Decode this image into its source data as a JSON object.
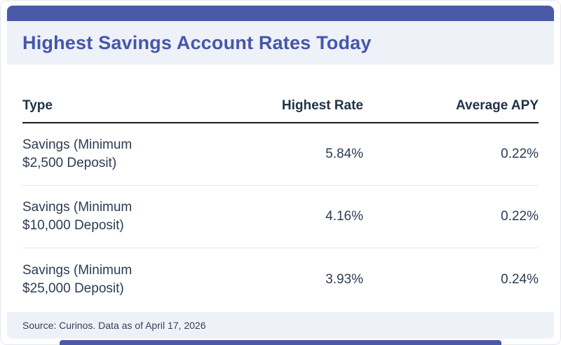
{
  "header": {
    "title": "Highest Savings Account Rates Today"
  },
  "table": {
    "columns": {
      "type": "Type",
      "highest_rate": "Highest Rate",
      "average_apy": "Average APY"
    },
    "rows": [
      {
        "type_line1": "Savings (Minimum",
        "type_line2": "$2,500 Deposit)",
        "highest_rate": "5.84%",
        "average_apy": "0.22%"
      },
      {
        "type_line1": "Savings (Minimum",
        "type_line2": "$10,000 Deposit)",
        "highest_rate": "4.16%",
        "average_apy": "0.22%"
      },
      {
        "type_line1": "Savings (Minimum",
        "type_line2": "$25,000 Deposit)",
        "highest_rate": "3.93%",
        "average_apy": "0.24%"
      }
    ]
  },
  "footer": {
    "source": "Source: Curinos. Data as of April 17, 2026"
  },
  "colors": {
    "accent_blue": "#4a59a8",
    "band_bg": "#eef1f8",
    "title_blue": "#4557ac",
    "text_dark": "#2c3c54",
    "header_rule": "#1c1c1c",
    "row_divider": "#e7e8ea"
  },
  "chart_data": {
    "type": "table",
    "title": "Highest Savings Account Rates Today",
    "columns": [
      "Type",
      "Highest Rate",
      "Average APY"
    ],
    "rows": [
      [
        "Savings (Minimum $2,500 Deposit)",
        "5.84%",
        "0.22%"
      ],
      [
        "Savings (Minimum $10,000 Deposit)",
        "4.16%",
        "0.22%"
      ],
      [
        "Savings (Minimum $25,000 Deposit)",
        "3.93%",
        "0.24%"
      ]
    ],
    "highest_rate_values": [
      5.84,
      4.16,
      3.93
    ],
    "average_apy_values": [
      0.22,
      0.22,
      0.24
    ],
    "source_note": "Source: Curinos. Data as of April 17, 2026"
  }
}
